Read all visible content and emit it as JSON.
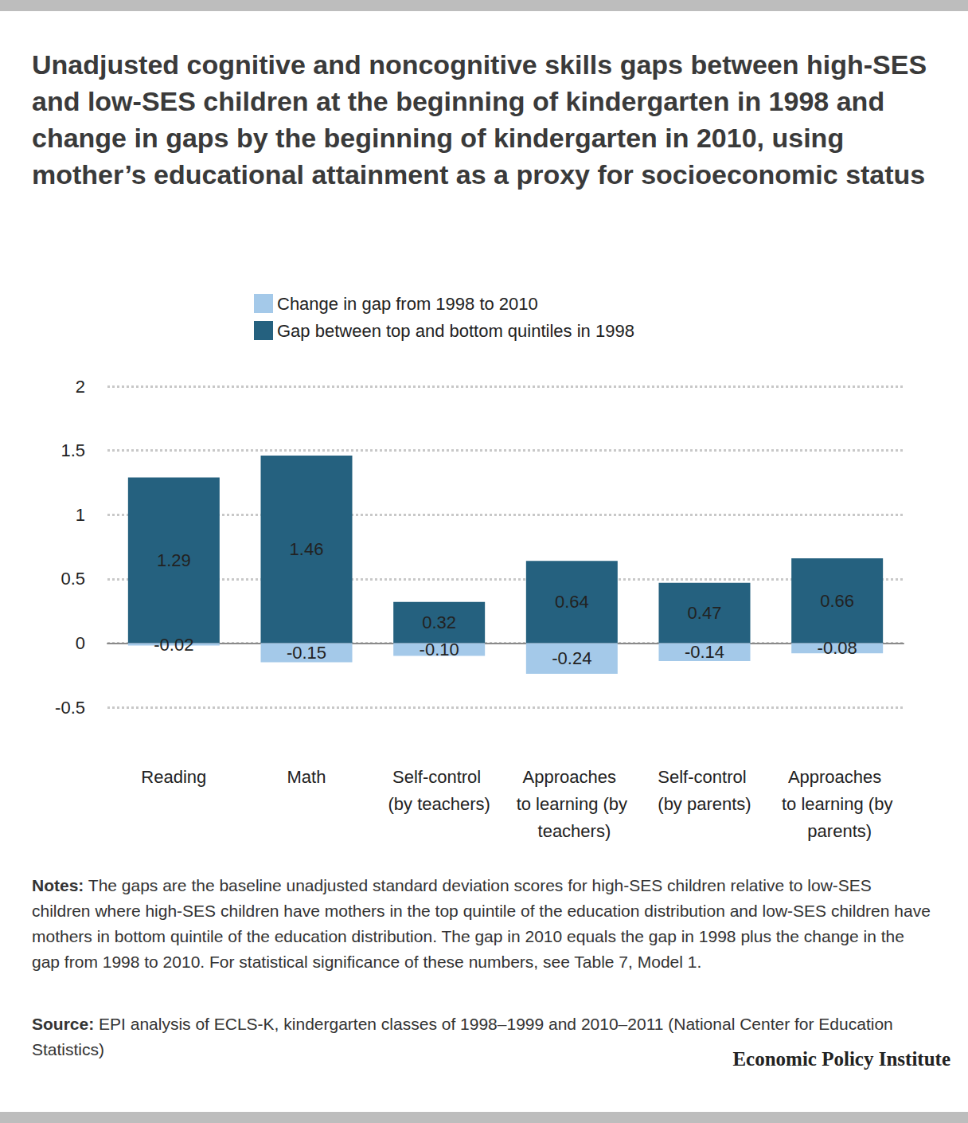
{
  "chart_data": {
    "type": "bar",
    "title": "Unadjusted cognitive and noncognitive skills gaps between high-SES and low-SES children at the beginning of kindergarten in 1998 and change in gaps by the beginning of kindergarten in 2010, using mother’s educational attainment as a proxy for socioeconomic status",
    "categories": [
      "Reading",
      "Math",
      "Self-control (by teachers)",
      "Approaches to learning (by teachers)",
      "Self-control (by parents)",
      "Approaches to learning (by parents)"
    ],
    "series": [
      {
        "name": "Gap between top and bottom quintiles in 1998",
        "color": "#25617f",
        "values": [
          1.29,
          1.46,
          0.32,
          0.64,
          0.47,
          0.66
        ],
        "value_labels": [
          "1.29",
          "1.46",
          "0.32",
          "0.64",
          "0.47",
          "0.66"
        ]
      },
      {
        "name": "Change in gap from 1998 to 2010",
        "color": "#a4c9e9",
        "values": [
          -0.02,
          -0.15,
          -0.1,
          -0.24,
          -0.14,
          -0.08
        ],
        "value_labels": [
          "-0.02",
          "-0.15",
          "-0.10",
          "-0.24",
          "-0.14",
          "-0.08"
        ]
      }
    ],
    "stacked": true,
    "data_labels": true,
    "legend": "top",
    "grid": true,
    "ylim": [
      -0.5,
      2
    ],
    "yticks": [
      -0.5,
      0,
      0.5,
      1,
      1.5,
      2
    ],
    "notes": {
      "label": "Notes:",
      "text": "The gaps are the baseline unadjusted standard deviation scores for high-SES children relative to low-SES children where high-SES children have mothers in the top quintile of the education distribution and low-SES children have mothers in bottom quintile of the education distribution. The gap in 2010 equals the gap in 1998 plus the change in the gap from 1998 to 2010. For statistical significance of these numbers, see Table 7, Model 1."
    },
    "source": {
      "label": "Source:",
      "text": "EPI analysis of ECLS-K, kindergarten classes of 1998–1999 and 2010–2011 (National Center for Education Statistics)"
    },
    "credit": "Economic Policy Institute"
  }
}
